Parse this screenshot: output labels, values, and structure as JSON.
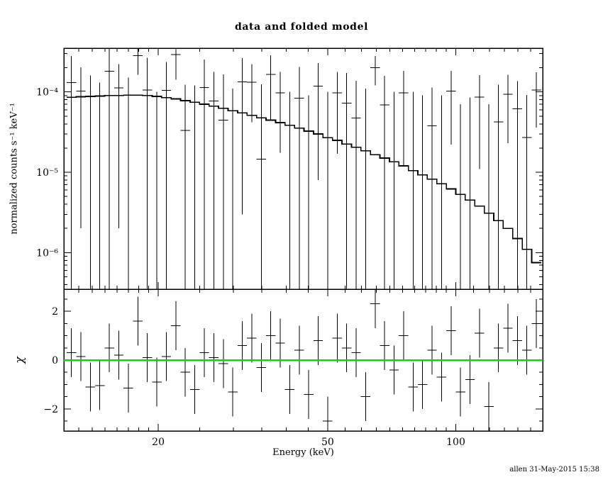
{
  "title": "data and folded model",
  "footer": "allen 31-May-2015 15:38",
  "chart_data": [
    {
      "type": "scatter",
      "name": "folded-spectrum",
      "title": "data and folded model",
      "xlabel": "Energy (keV)",
      "ylabel": "normalized counts s⁻¹ keV⁻¹",
      "xscale": "log",
      "yscale": "log",
      "xlim": [
        12,
        160
      ],
      "ylim": [
        3.5e-07,
        0.00035
      ],
      "bin_ratio": 1.026,
      "x_ticks": [
        {
          "value": 20,
          "label": "20"
        },
        {
          "value": 50,
          "label": "50"
        },
        {
          "value": 100,
          "label": "100"
        }
      ],
      "x_minor_ticks": [
        13,
        14,
        15,
        16,
        17,
        18,
        19,
        25,
        30,
        35,
        40,
        45,
        55,
        60,
        65,
        70,
        75,
        80,
        85,
        90,
        95,
        110,
        120,
        130,
        140,
        150
      ],
      "y_ticks": [
        {
          "value": 0.0001,
          "label": "10⁻⁴"
        },
        {
          "value": 1e-05,
          "label": "10⁻⁵"
        },
        {
          "value": 1e-06,
          "label": "10⁻⁶"
        }
      ],
      "x": [
        12.5,
        13.16,
        13.85,
        14.58,
        15.35,
        16.16,
        17.01,
        17.91,
        18.85,
        19.85,
        20.89,
        21.99,
        23.15,
        24.37,
        25.65,
        27.0,
        28.43,
        29.93,
        31.5,
        33.16,
        34.91,
        36.75,
        38.68,
        40.72,
        42.87,
        45.13,
        47.5,
        50.0,
        52.64,
        55.41,
        58.33,
        61.4,
        64.63,
        68.04,
        71.62,
        75.39,
        79.36,
        83.54,
        87.94,
        92.57,
        97.44,
        102.57,
        107.97,
        113.65,
        119.64,
        125.94,
        132.57,
        139.55,
        146.89,
        154.63
      ],
      "series": [
        {
          "name": "data",
          "style": "errorbar",
          "color": "#000000",
          "y": [
            0.000131,
            0.000102,
            2e-07,
            2e-07,
            0.00018,
            0.000112,
            2e-07,
            0.000283,
            0.000106,
            2e-07,
            0.000105,
            0.000292,
            3.3e-05,
            2e-07,
            0.000113,
            7.7e-05,
            4.45e-05,
            2e-07,
            0.000133,
            0.000132,
            1.45e-05,
            0.000165,
            9.75e-05,
            2e-07,
            8.35e-05,
            2e-07,
            0.000118,
            2e-07,
            9.7e-05,
            7.25e-05,
            4.75e-05,
            2e-07,
            0.0002,
            6.9e-05,
            2e-07,
            9.7e-05,
            2e-07,
            2e-07,
            3.8e-05,
            2e-07,
            0.000102,
            2e-07,
            2e-07,
            8.6e-05,
            2e-07,
            4.25e-05,
            9.3e-05,
            6.15e-05,
            2.7e-05,
            0.000106
          ],
          "yerr": [
            0.00015,
            0.0001,
            0.00016,
            0.00013,
            0.00018,
            0.00011,
            0.00015,
            0.00012,
            0.00016,
            0.0001,
            0.00013,
            0.00015,
            9e-05,
            0.00012,
            0.00014,
            0.0001,
            0.00012,
            0.00011,
            0.00013,
            9e-05,
            0.00011,
            0.00012,
            8e-05,
            0.0001,
            0.00012,
            9e-05,
            0.00011,
            0.0001,
            8e-05,
            0.0001,
            9e-05,
            0.00011,
            8e-05,
            9e-05,
            0.0001,
            8.5e-05,
            0.0001,
            9e-05,
            7.5e-05,
            9e-05,
            8e-05,
            7e-05,
            8.5e-05,
            7.5e-05,
            7e-05,
            8e-05,
            7e-05,
            7.5e-05,
            6.5e-05,
            7e-05
          ]
        },
        {
          "name": "folded model",
          "style": "step",
          "color": "#000000",
          "y": [
            8.6e-05,
            8.7e-05,
            8.8e-05,
            8.9e-05,
            9e-05,
            9e-05,
            9.1e-05,
            9.1e-05,
            9e-05,
            8.8e-05,
            8.5e-05,
            8.2e-05,
            7.8e-05,
            7.45e-05,
            7.05e-05,
            6.65e-05,
            6.25e-05,
            5.85e-05,
            5.5e-05,
            5.1e-05,
            4.75e-05,
            4.45e-05,
            4.15e-05,
            3.85e-05,
            3.55e-05,
            3.25e-05,
            3e-05,
            2.7e-05,
            2.5e-05,
            2.25e-05,
            2.05e-05,
            1.85e-05,
            1.65e-05,
            1.5e-05,
            1.35e-05,
            1.2e-05,
            1.05e-05,
            9.3e-06,
            8.2e-06,
            7.2e-06,
            6.2e-06,
            5.3e-06,
            4.5e-06,
            3.8e-06,
            3.1e-06,
            2.5e-06,
            2e-06,
            1.5e-06,
            1.1e-06,
            7.5e-07
          ]
        }
      ]
    },
    {
      "type": "scatter",
      "name": "chi-residuals",
      "ylabel": "χ",
      "xscale": "log",
      "xlim": [
        12,
        160
      ],
      "ylim": [
        -2.9,
        2.9
      ],
      "bin_ratio": 1.026,
      "y_ticks": [
        {
          "value": -2,
          "label": "−2"
        },
        {
          "value": 0,
          "label": "0"
        },
        {
          "value": 2,
          "label": "2"
        }
      ],
      "y_minor_ticks": [
        -2.5,
        -1.5,
        -1,
        -0.5,
        0.5,
        1,
        1.5,
        2.5
      ],
      "x": [
        12.5,
        13.16,
        13.85,
        14.58,
        15.35,
        16.16,
        17.01,
        17.91,
        18.85,
        19.85,
        20.89,
        21.99,
        23.15,
        24.37,
        25.65,
        27.0,
        28.43,
        29.93,
        31.5,
        33.16,
        34.91,
        36.75,
        38.68,
        40.72,
        42.87,
        45.13,
        47.5,
        50.0,
        52.64,
        55.41,
        58.33,
        61.4,
        64.63,
        68.04,
        71.62,
        75.39,
        79.36,
        83.54,
        87.94,
        92.57,
        97.44,
        102.57,
        107.97,
        113.65,
        119.64,
        125.94,
        132.57,
        139.55,
        146.89,
        154.63
      ],
      "series": [
        {
          "name": "chi",
          "style": "errorbar",
          "color": "#000000",
          "yerr_const": 1,
          "y": [
            0.3,
            0.15,
            -1.1,
            -1.05,
            0.5,
            0.2,
            -1.15,
            1.6,
            0.1,
            -0.9,
            0.15,
            1.4,
            -0.5,
            -1.2,
            0.3,
            0.1,
            -0.15,
            -1.3,
            0.6,
            0.9,
            -0.3,
            1.0,
            0.7,
            -1.2,
            0.4,
            -1.4,
            0.8,
            -2.5,
            0.9,
            0.5,
            0.3,
            -1.5,
            2.3,
            0.6,
            -0.4,
            1.0,
            -1.1,
            -1.0,
            0.4,
            -0.7,
            1.2,
            -1.3,
            -0.8,
            1.1,
            -1.9,
            0.5,
            1.3,
            0.8,
            0.4,
            1.5
          ]
        }
      ],
      "zero_line": {
        "y": 0,
        "color": "#00dd00"
      }
    }
  ]
}
